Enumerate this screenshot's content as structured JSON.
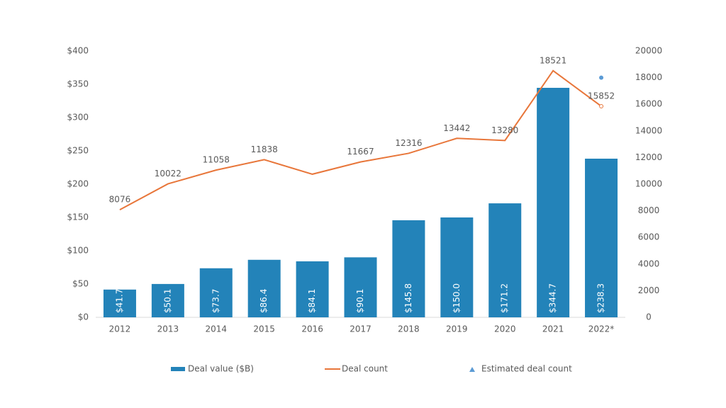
{
  "chart_data": {
    "type": "bar",
    "categories": [
      "2012",
      "2013",
      "2014",
      "2015",
      "2016",
      "2017",
      "2018",
      "2019",
      "2020",
      "2021",
      "2022*"
    ],
    "series": [
      {
        "name": "Deal value ($B)",
        "type": "bar",
        "axis": "y",
        "color": "#2383b9",
        "values": [
          41.7,
          50.1,
          73.7,
          86.4,
          84.1,
          90.1,
          145.8,
          150.0,
          171.2,
          344.7,
          238.3
        ],
        "value_labels": [
          "$41.7",
          "$50.1",
          "$73.7",
          "$86.4",
          "$84.1",
          "$90.1",
          "$145.8",
          "$150.0",
          "$171.2",
          "$344.7",
          "$238.3"
        ]
      },
      {
        "name": "Deal count",
        "type": "line",
        "axis": "y2",
        "color": "#e8763a",
        "values": [
          8076,
          10022,
          11058,
          11838,
          10750,
          11667,
          12316,
          13442,
          13280,
          18521,
          15852
        ],
        "value_labels": [
          "8076",
          "10022",
          "11058",
          "11838",
          null,
          "11667",
          "12316",
          "13442",
          "13280",
          "18521",
          "15852"
        ]
      },
      {
        "name": "Estimated deal count",
        "type": "scatter",
        "axis": "y2",
        "color": "#5b9bd5",
        "values": [
          null,
          null,
          null,
          null,
          null,
          null,
          null,
          null,
          null,
          null,
          18000
        ]
      }
    ],
    "ylim": [
      0,
      400
    ],
    "yticks": [
      {
        "value": 0,
        "label": "$0"
      },
      {
        "value": 50,
        "label": "$50"
      },
      {
        "value": 100,
        "label": "$100"
      },
      {
        "value": 150,
        "label": "$150"
      },
      {
        "value": 200,
        "label": "$200"
      },
      {
        "value": 250,
        "label": "$250"
      },
      {
        "value": 300,
        "label": "$300"
      },
      {
        "value": 350,
        "label": "$350"
      },
      {
        "value": 400,
        "label": "$400"
      }
    ],
    "y2lim": [
      0,
      20000
    ],
    "y2ticks": [
      0,
      2000,
      4000,
      6000,
      8000,
      10000,
      12000,
      14000,
      16000,
      18000,
      20000
    ],
    "grid": false
  }
}
